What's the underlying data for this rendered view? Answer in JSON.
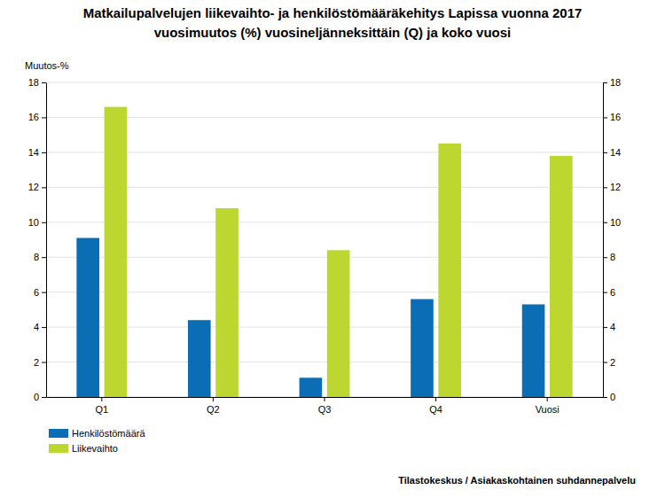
{
  "chart_data": {
    "type": "bar",
    "title": "Matkailupalvelujen liikevaihto- ja henkilöstömääräkehitys Lapissa vuonna 2017",
    "subtitle": "vuosimuutos (%) vuosineljänneksittäin (Q) ja koko vuosi",
    "y_label": "Muutos-%",
    "source": "Tilastokeskus / Asiakaskohtainen suhdannepalvelu",
    "categories": [
      "Q1",
      "Q2",
      "Q3",
      "Q4",
      "Vuosi"
    ],
    "series": [
      {
        "name": "Henkilöstömäärä",
        "color": "#0b6db3",
        "values": [
          9.1,
          4.4,
          1.1,
          5.6,
          5.3
        ]
      },
      {
        "name": "Liikevaihto",
        "color": "#bdd630",
        "values": [
          16.6,
          10.8,
          8.4,
          14.5,
          13.8
        ]
      }
    ],
    "ylim": [
      0,
      18
    ],
    "yticks": [
      0,
      2,
      4,
      6,
      8,
      10,
      12,
      14,
      16,
      18
    ],
    "y2lim": [
      0,
      18
    ],
    "y2ticks": [
      0,
      2,
      4,
      6,
      8,
      10,
      12,
      14,
      16,
      18
    ],
    "grid": true,
    "legend": "bottom-left"
  }
}
